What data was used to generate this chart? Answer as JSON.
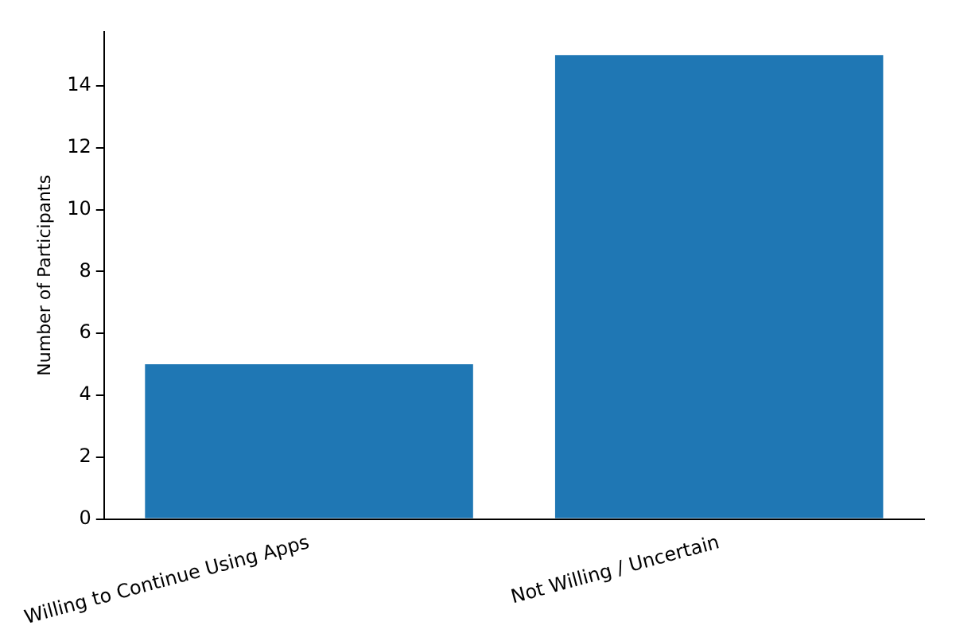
{
  "chart_data": {
    "type": "bar",
    "ylabel": "Number of Participants",
    "categories": [
      "Willing to Continue Using Apps",
      "Not Willing / Uncertain"
    ],
    "values": [
      5,
      15
    ],
    "color": "#1f77b4",
    "ylim": [
      0,
      15.75
    ],
    "yticks": [
      0,
      2,
      4,
      6,
      8,
      10,
      12,
      14
    ],
    "grid": false,
    "legend": false
  }
}
